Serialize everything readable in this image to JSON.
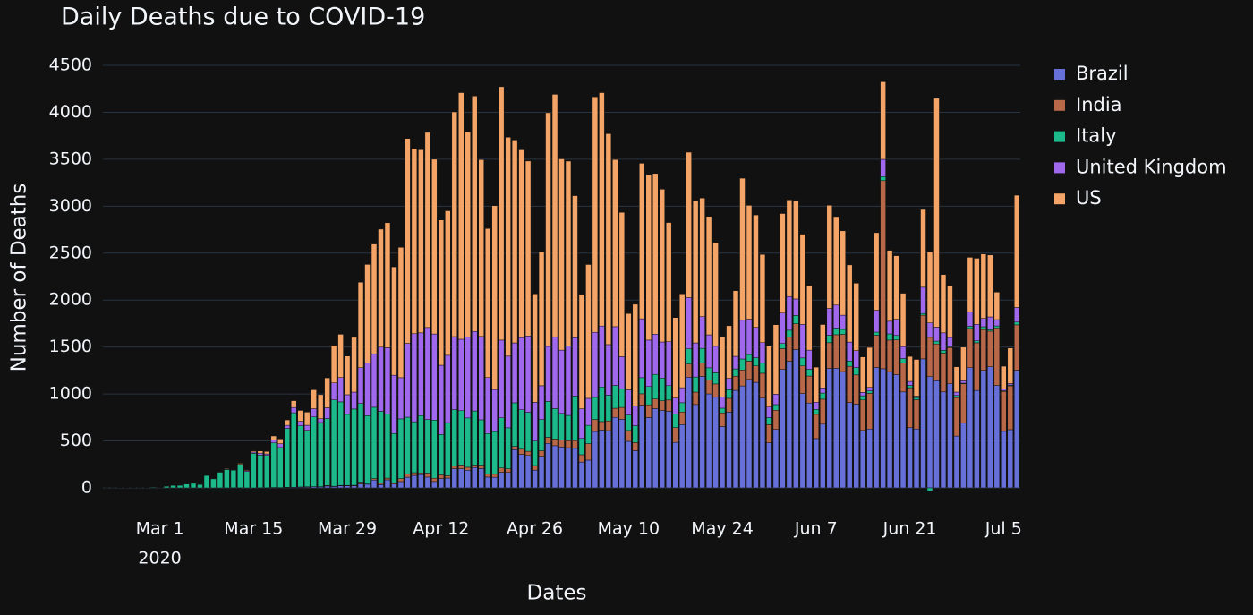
{
  "chart_data": {
    "type": "bar",
    "barmode": "stack",
    "title": "Daily Deaths due to COVID-19",
    "x_label": "Dates",
    "y_label": "Number of Deaths",
    "x": [
      "2020-02-22",
      "2020-02-23",
      "2020-02-24",
      "2020-02-25",
      "2020-02-26",
      "2020-02-27",
      "2020-02-28",
      "2020-02-29",
      "2020-03-01",
      "2020-03-02",
      "2020-03-03",
      "2020-03-04",
      "2020-03-05",
      "2020-03-06",
      "2020-03-07",
      "2020-03-08",
      "2020-03-09",
      "2020-03-10",
      "2020-03-11",
      "2020-03-12",
      "2020-03-13",
      "2020-03-14",
      "2020-03-15",
      "2020-03-16",
      "2020-03-17",
      "2020-03-18",
      "2020-03-19",
      "2020-03-20",
      "2020-03-21",
      "2020-03-22",
      "2020-03-23",
      "2020-03-24",
      "2020-03-25",
      "2020-03-26",
      "2020-03-27",
      "2020-03-28",
      "2020-03-29",
      "2020-03-30",
      "2020-03-31",
      "2020-04-01",
      "2020-04-02",
      "2020-04-03",
      "2020-04-04",
      "2020-04-05",
      "2020-04-06",
      "2020-04-07",
      "2020-04-08",
      "2020-04-09",
      "2020-04-10",
      "2020-04-11",
      "2020-04-12",
      "2020-04-13",
      "2020-04-14",
      "2020-04-15",
      "2020-04-16",
      "2020-04-17",
      "2020-04-18",
      "2020-04-19",
      "2020-04-20",
      "2020-04-21",
      "2020-04-22",
      "2020-04-23",
      "2020-04-24",
      "2020-04-25",
      "2020-04-26",
      "2020-04-27",
      "2020-04-28",
      "2020-04-29",
      "2020-04-30",
      "2020-05-01",
      "2020-05-02",
      "2020-05-03",
      "2020-05-04",
      "2020-05-05",
      "2020-05-06",
      "2020-05-07",
      "2020-05-08",
      "2020-05-09",
      "2020-05-10",
      "2020-05-11",
      "2020-05-12",
      "2020-05-13",
      "2020-05-14",
      "2020-05-15",
      "2020-05-16",
      "2020-05-17",
      "2020-05-18",
      "2020-05-19",
      "2020-05-20",
      "2020-05-21",
      "2020-05-22",
      "2020-05-23",
      "2020-05-24",
      "2020-05-25",
      "2020-05-26",
      "2020-05-27",
      "2020-05-28",
      "2020-05-29",
      "2020-05-30",
      "2020-05-31",
      "2020-06-01",
      "2020-06-02",
      "2020-06-03",
      "2020-06-04",
      "2020-06-05",
      "2020-06-06",
      "2020-06-07",
      "2020-06-08",
      "2020-06-09",
      "2020-06-10",
      "2020-06-11",
      "2020-06-12",
      "2020-06-13",
      "2020-06-14",
      "2020-06-15",
      "2020-06-16",
      "2020-06-17",
      "2020-06-18",
      "2020-06-19",
      "2020-06-20",
      "2020-06-21",
      "2020-06-22",
      "2020-06-23",
      "2020-06-24",
      "2020-06-25",
      "2020-06-26",
      "2020-06-27",
      "2020-06-28",
      "2020-06-29",
      "2020-06-30",
      "2020-07-01",
      "2020-07-02",
      "2020-07-03",
      "2020-07-04",
      "2020-07-05",
      "2020-07-06",
      "2020-07-07"
    ],
    "series": [
      {
        "name": "Brazil",
        "color": "#6670d8",
        "values": [
          0,
          0,
          0,
          0,
          0,
          0,
          0,
          0,
          0,
          0,
          0,
          0,
          0,
          0,
          0,
          0,
          0,
          0,
          0,
          0,
          0,
          0,
          0,
          0,
          1,
          3,
          2,
          5,
          7,
          7,
          9,
          12,
          11,
          20,
          15,
          22,
          22,
          23,
          42,
          39,
          84,
          35,
          86,
          41,
          67,
          114,
          133,
          141,
          115,
          68,
          99,
          105,
          204,
          204,
          188,
          217,
          206,
          115,
          113,
          166,
          165,
          407,
          357,
          346,
          189,
          338,
          474,
          449,
          435,
          428,
          421,
          275,
          296,
          600,
          615,
          610,
          751,
          730,
          496,
          396,
          881,
          749,
          844,
          824,
          816,
          485,
          674,
          1179,
          888,
          1188,
          1001,
          965,
          653,
          807,
          1039,
          1086,
          1156,
          1124,
          956,
          480,
          623,
          1262,
          1349,
          1473,
          1005,
          904,
          525,
          679,
          1272,
          1274,
          1239,
          909,
          892,
          612,
          627,
          1282,
          1269,
          1238,
          1206,
          1022,
          641,
          627,
          1374,
          1185,
          1141,
          1022,
          1109,
          552,
          692,
          1280,
          1038,
          1252,
          1290,
          1091,
          602,
          620,
          1254
        ]
      },
      {
        "name": "India",
        "color": "#b86848",
        "values": [
          0,
          0,
          0,
          0,
          0,
          0,
          0,
          0,
          0,
          0,
          0,
          0,
          0,
          0,
          0,
          0,
          0,
          0,
          0,
          1,
          1,
          0,
          0,
          1,
          0,
          1,
          1,
          1,
          0,
          3,
          3,
          1,
          2,
          6,
          3,
          5,
          5,
          5,
          20,
          3,
          15,
          14,
          18,
          13,
          32,
          35,
          29,
          19,
          43,
          35,
          39,
          24,
          27,
          40,
          32,
          27,
          37,
          31,
          32,
          46,
          38,
          35,
          55,
          44,
          49,
          57,
          65,
          72,
          73,
          75,
          83,
          78,
          175,
          128,
          91,
          103,
          97,
          127,
          115,
          87,
          121,
          136,
          103,
          104,
          120,
          157,
          134,
          140,
          132,
          142,
          148,
          142,
          146,
          147,
          150,
          170,
          194,
          175,
          265,
          193,
          204,
          221,
          259,
          275,
          294,
          287,
          258,
          266,
          274,
          357,
          396,
          386,
          311,
          325,
          380,
          343,
          2003,
          336,
          370,
          306,
          426,
          312,
          465,
          418,
          392,
          413,
          385,
          410,
          417,
          418,
          507,
          434,
          379,
          613,
          425,
          467,
          482
        ]
      },
      {
        "name": "Italy",
        "color": "#1cba8a",
        "values": [
          1,
          1,
          4,
          3,
          2,
          5,
          4,
          8,
          5,
          18,
          27,
          28,
          41,
          49,
          36,
          133,
          97,
          168,
          196,
          189,
          250,
          175,
          368,
          349,
          345,
          475,
          427,
          627,
          793,
          651,
          601,
          743,
          683,
          712,
          919,
          889,
          756,
          812,
          837,
          727,
          760,
          766,
          681,
          525,
          636,
          604,
          542,
          610,
          570,
          619,
          431,
          566,
          602,
          578,
          525,
          575,
          482,
          433,
          454,
          534,
          437,
          464,
          420,
          415,
          260,
          333,
          382,
          323,
          285,
          269,
          474,
          174,
          195,
          236,
          369,
          274,
          243,
          194,
          165,
          179,
          172,
          195,
          262,
          242,
          153,
          145,
          99,
          162,
          161,
          156,
          130,
          119,
          50,
          92,
          78,
          117,
          70,
          87,
          111,
          75,
          60,
          55,
          71,
          88,
          85,
          72,
          53,
          65,
          79,
          71,
          53,
          56,
          78,
          44,
          26,
          34,
          43,
          66,
          47,
          49,
          24,
          23,
          18,
          -31,
          30,
          30,
          8,
          22,
          6,
          23,
          21,
          30,
          15,
          21,
          7,
          8,
          30
        ]
      },
      {
        "name": "United Kingdom",
        "color": "#a068ec",
        "values": [
          0,
          0,
          0,
          0,
          0,
          0,
          0,
          0,
          0,
          0,
          0,
          0,
          1,
          1,
          0,
          1,
          0,
          1,
          2,
          2,
          1,
          10,
          14,
          20,
          16,
          33,
          40,
          33,
          56,
          48,
          54,
          87,
          41,
          115,
          181,
          260,
          209,
          180,
          381,
          563,
          569,
          684,
          708,
          621,
          439,
          786,
          938,
          881,
          980,
          917,
          737,
          717,
          778,
          761,
          861,
          847,
          888,
          596,
          449,
          828,
          763,
          638,
          768,
          813,
          413,
          360,
          586,
          765,
          674,
          739,
          621,
          315,
          288,
          693,
          649,
          539,
          626,
          346,
          268,
          210,
          627,
          494,
          428,
          384,
          468,
          170,
          160,
          545,
          363,
          338,
          351,
          282,
          118,
          121,
          134,
          412,
          377,
          324,
          215,
          113,
          111,
          324,
          359,
          176,
          357,
          204,
          77,
          55,
          286,
          245,
          151,
          202,
          181,
          36,
          38,
          233,
          184,
          135,
          173,
          128,
          43,
          15,
          280,
          154,
          149,
          186,
          100,
          36,
          25,
          155,
          176,
          89,
          137,
          67,
          22,
          16,
          155
        ]
      },
      {
        "name": "US",
        "color": "#f4a466",
        "values": [
          0,
          0,
          0,
          0,
          0,
          0,
          0,
          1,
          0,
          5,
          1,
          4,
          1,
          2,
          3,
          4,
          4,
          3,
          7,
          4,
          10,
          7,
          12,
          23,
          26,
          41,
          51,
          58,
          73,
          116,
          140,
          202,
          256,
          319,
          399,
          460,
          412,
          583,
          911,
          1048,
          1169,
          1257,
          1331,
          1154,
          1388,
          2182,
          1972,
          1950,
          2078,
          1861,
          1547,
          1539,
          2393,
          2626,
          2186,
          2507,
          1883,
          1587,
          1958,
          2698,
          2332,
          2161,
          2000,
          1863,
          1155,
          1426,
          2488,
          2582,
          2037,
          1969,
          1513,
          1219,
          1425,
          2508,
          2485,
          2246,
          1780,
          1537,
          813,
          1084,
          1656,
          1765,
          1711,
          1627,
          1269,
          857,
          999,
          1549,
          1518,
          1263,
          1261,
          1103,
          645,
          560,
          699,
          1513,
          1212,
          1197,
          939,
          649,
          740,
          1060,
          1029,
          1049,
          961,
          683,
          373,
          675,
          1099,
          942,
          899,
          822,
          718,
          378,
          425,
          826,
          826,
          755,
          677,
          568,
          266,
          391,
          828,
          757,
          2437,
          621,
          547,
          270,
          359,
          580,
          704,
          686,
          660,
          293,
          240,
          379,
          1196
        ]
      }
    ],
    "xlim": [
      "2020-02-21T12:00:00Z",
      "2020-07-07T12:00:00Z"
    ],
    "xticks": [
      {
        "value": "2020-03-01",
        "label": "Mar 1",
        "sublabel": "2020"
      },
      {
        "value": "2020-03-15",
        "label": "Mar 15"
      },
      {
        "value": "2020-03-29",
        "label": "Mar 29"
      },
      {
        "value": "2020-04-12",
        "label": "Apr 12"
      },
      {
        "value": "2020-04-26",
        "label": "Apr 26"
      },
      {
        "value": "2020-05-10",
        "label": "May 10"
      },
      {
        "value": "2020-05-24",
        "label": "May 24"
      },
      {
        "value": "2020-06-07",
        "label": "Jun 7"
      },
      {
        "value": "2020-06-21",
        "label": "Jun 21"
      },
      {
        "value": "2020-07-05",
        "label": "Jul 5"
      }
    ],
    "ylim": [
      -150,
      4620
    ],
    "yticks": [
      0,
      500,
      1000,
      1500,
      2000,
      2500,
      3000,
      3500,
      4000,
      4500
    ],
    "grid": true,
    "legend": "right"
  }
}
